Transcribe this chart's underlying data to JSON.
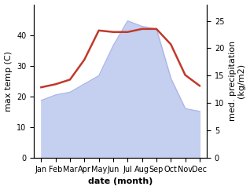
{
  "months": [
    "Jan",
    "Feb",
    "Mar",
    "Apr",
    "May",
    "Jun",
    "Jul",
    "Aug",
    "Sep",
    "Oct",
    "Nov",
    "Dec"
  ],
  "temp": [
    23,
    24,
    25.5,
    32,
    41.5,
    41.0,
    41.0,
    42,
    42,
    37,
    27,
    23.5
  ],
  "precip": [
    10.5,
    11.5,
    12.0,
    13.5,
    15.0,
    20.5,
    25.0,
    24.0,
    23.5,
    14.5,
    9.0,
    8.5
  ],
  "temp_color": "#c0392b",
  "precip_fill_color": "#c5cff0",
  "precip_edge_color": "#aab4e8",
  "ylabel_left": "max temp (C)",
  "ylabel_right": "med. precipitation\n(kg/m2)",
  "xlabel": "date (month)",
  "ylim_left": [
    0,
    50
  ],
  "ylim_right": [
    0,
    28
  ],
  "yticks_left": [
    0,
    10,
    20,
    30,
    40
  ],
  "yticks_right": [
    0,
    5,
    10,
    15,
    20,
    25
  ],
  "label_fontsize": 8,
  "tick_fontsize": 7
}
